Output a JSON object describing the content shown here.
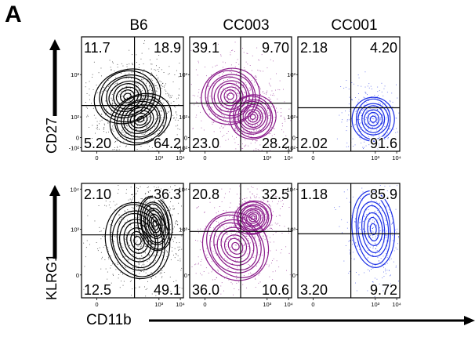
{
  "panel_label": "A",
  "x_axis_label": "CD11b",
  "colors": {
    "B6": "#000000",
    "CC003": "#8a1a8a",
    "CC001": "#1a2ee6"
  },
  "chart_data": {
    "type": "contour",
    "columns": [
      "B6",
      "CC003",
      "CC001"
    ],
    "rows": [
      {
        "ylabel": "CD27",
        "y_ticks": [
          "-10²",
          "0",
          "10²",
          "10³"
        ],
        "x_ticks": [
          "0",
          "10³",
          "10⁴"
        ],
        "quadrants": {
          "B6": {
            "upper_left": "11.7",
            "upper_right": "18.9",
            "lower_left": "5.20",
            "lower_right": "64.2"
          },
          "CC003": {
            "upper_left": "39.1",
            "upper_right": "9.70",
            "lower_left": "23.0",
            "lower_right": "28.2"
          },
          "CC001": {
            "upper_left": "2.18",
            "upper_right": "4.20",
            "lower_left": "2.02",
            "lower_right": "91.6"
          }
        }
      },
      {
        "ylabel": "KLRG1",
        "y_ticks": [
          "0",
          "10³",
          "10⁴"
        ],
        "x_ticks": [
          "0",
          "10³",
          "10⁴"
        ],
        "quadrants": {
          "B6": {
            "upper_left": "2.10",
            "upper_right": "36.3",
            "lower_left": "12.5",
            "lower_right": "49.1"
          },
          "CC003": {
            "upper_left": "20.8",
            "upper_right": "32.5",
            "lower_left": "36.0",
            "lower_right": "10.6"
          },
          "CC001": {
            "upper_left": "1.18",
            "upper_right": "85.9",
            "lower_left": "3.20",
            "lower_right": "9.72"
          }
        }
      }
    ]
  }
}
